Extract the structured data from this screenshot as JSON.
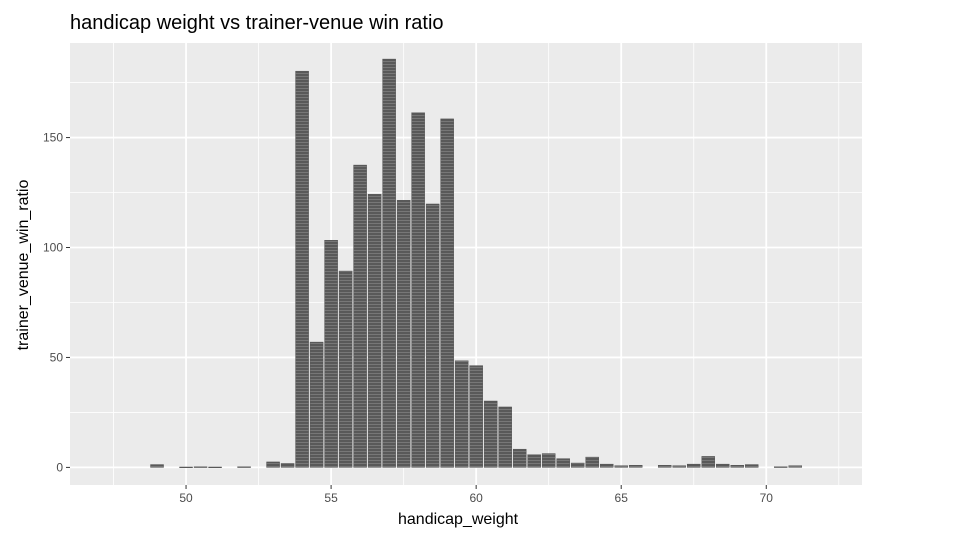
{
  "chart_data": {
    "type": "bar",
    "title": "handicap weight vs trainer-venue win ratio",
    "xlabel": "handicap_weight",
    "ylabel": "trainer_venue_win_ratio",
    "xlim": [
      46.0,
      73.3
    ],
    "ylim": [
      -8,
      193
    ],
    "x_ticks": [
      50,
      55,
      60,
      65,
      70
    ],
    "y_ticks": [
      0,
      50,
      100,
      150
    ],
    "x_minor_ticks": [
      47.5,
      52.5,
      57.5,
      62.5,
      67.5,
      72.5
    ],
    "y_minor_ticks": [
      25,
      75,
      125,
      175
    ],
    "bar_width": 0.45,
    "grid": true,
    "panel_background": "#ebebeb",
    "grid_color": "#ffffff",
    "bar_color": "#595959",
    "bars": [
      {
        "x": 49.0,
        "y": 1.3
      },
      {
        "x": 50.0,
        "y": 0.2
      },
      {
        "x": 50.5,
        "y": 0.3
      },
      {
        "x": 51.0,
        "y": 0.2
      },
      {
        "x": 52.0,
        "y": 0.3
      },
      {
        "x": 53.0,
        "y": 2.5
      },
      {
        "x": 53.5,
        "y": 1.8
      },
      {
        "x": 54.0,
        "y": 180.2
      },
      {
        "x": 54.5,
        "y": 57.0
      },
      {
        "x": 55.0,
        "y": 103.3
      },
      {
        "x": 55.5,
        "y": 89.3
      },
      {
        "x": 56.0,
        "y": 137.5
      },
      {
        "x": 56.5,
        "y": 124.2
      },
      {
        "x": 57.0,
        "y": 185.7
      },
      {
        "x": 57.5,
        "y": 121.5
      },
      {
        "x": 58.0,
        "y": 161.3
      },
      {
        "x": 58.5,
        "y": 119.8
      },
      {
        "x": 59.0,
        "y": 158.5
      },
      {
        "x": 59.5,
        "y": 48.5
      },
      {
        "x": 60.0,
        "y": 46.3
      },
      {
        "x": 60.5,
        "y": 30.2
      },
      {
        "x": 61.0,
        "y": 27.5
      },
      {
        "x": 61.5,
        "y": 8.3
      },
      {
        "x": 62.0,
        "y": 5.8
      },
      {
        "x": 62.5,
        "y": 6.3
      },
      {
        "x": 63.0,
        "y": 4.0
      },
      {
        "x": 63.5,
        "y": 2.0
      },
      {
        "x": 64.0,
        "y": 4.7
      },
      {
        "x": 64.5,
        "y": 1.5
      },
      {
        "x": 65.0,
        "y": 0.8
      },
      {
        "x": 65.5,
        "y": 1.0
      },
      {
        "x": 66.5,
        "y": 1.0
      },
      {
        "x": 67.0,
        "y": 0.8
      },
      {
        "x": 67.5,
        "y": 1.5
      },
      {
        "x": 68.0,
        "y": 5.0
      },
      {
        "x": 68.5,
        "y": 1.5
      },
      {
        "x": 69.0,
        "y": 1.0
      },
      {
        "x": 69.5,
        "y": 1.3
      },
      {
        "x": 70.5,
        "y": 0.3
      },
      {
        "x": 71.0,
        "y": 0.8
      }
    ]
  }
}
